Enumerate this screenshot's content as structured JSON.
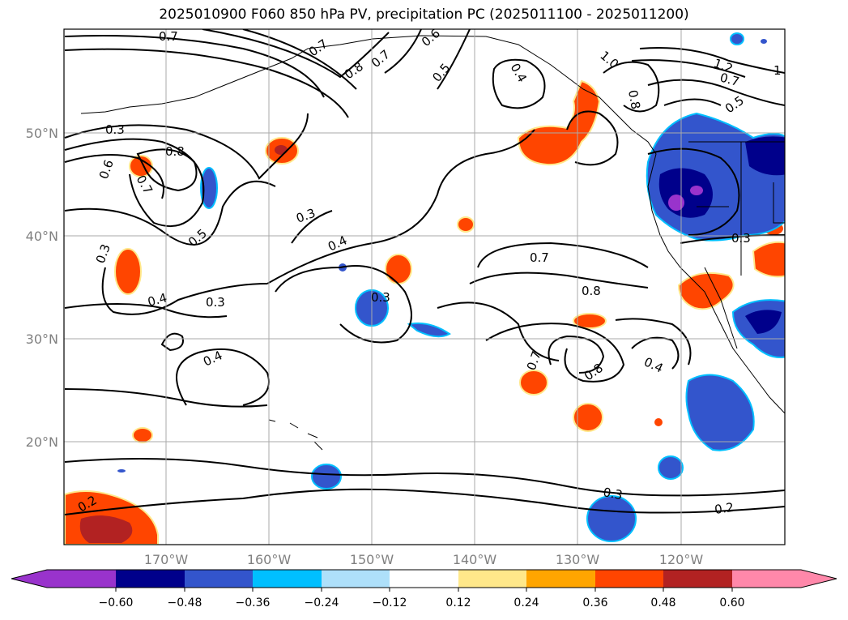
{
  "title": "2025010900 F060 850 hPa PV, precipitation PC (2025011100 - 2025011200)",
  "axes": {
    "lat_labels": [
      "50°N",
      "40°N",
      "30°N",
      "20°N"
    ],
    "lon_labels": [
      "170°W",
      "160°W",
      "150°W",
      "140°W",
      "130°W",
      "120°W"
    ]
  },
  "contour_labels": [
    "0.7",
    "0.7",
    "0.8",
    "0.7",
    "0.6",
    "0.5",
    "0.4",
    "1.0",
    "1.2",
    "1",
    "0.7",
    "0.5",
    "0.8",
    "0.3",
    "0.8",
    "0.6",
    "0.7",
    "0.5",
    "0.3",
    "0.3",
    "0.4",
    "0.4",
    "0.3",
    "0.3",
    "0.4",
    "0.7",
    "0.8",
    "0.7",
    "0.8",
    "0.4",
    "0.3",
    "0.3",
    "0.2",
    "0.2"
  ],
  "colorbar": {
    "ticks": [
      "−0.60",
      "−0.48",
      "−0.36",
      "−0.24",
      "−0.12",
      "0.12",
      "0.24",
      "0.36",
      "0.48",
      "0.60"
    ],
    "colors": {
      "under": "#9933cc",
      "c1": "#00008b",
      "c2": "#3355cc",
      "c3": "#00bfff",
      "c4": "#aee0fa",
      "c5": "#ffffff",
      "c6": "#ffe88a",
      "c7": "#ffa500",
      "c8": "#ff4500",
      "c9": "#b22222",
      "over": "#ff88aa"
    }
  }
}
